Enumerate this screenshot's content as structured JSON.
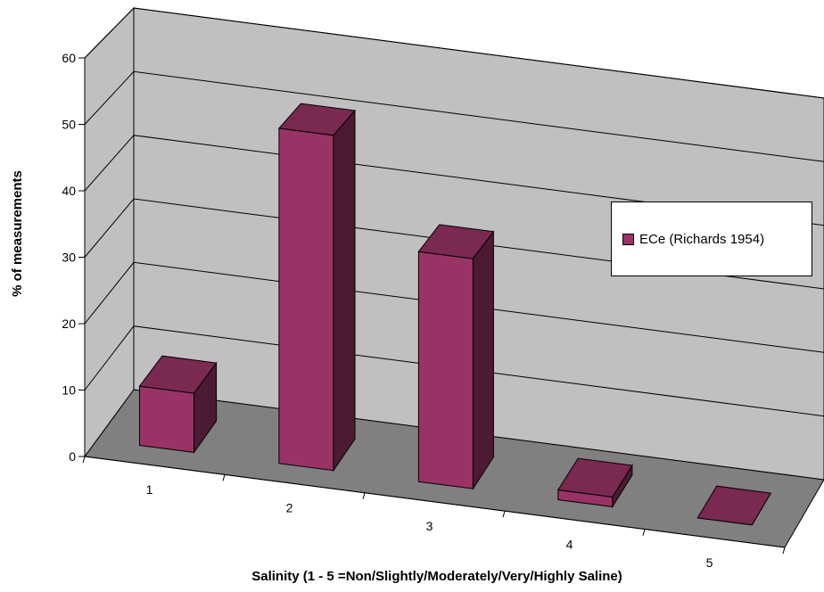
{
  "chart_data": {
    "type": "bar",
    "title": "",
    "xlabel": "Salinity (1 - 5 =Non/Slightly/Moderately/Very/Highly Saline)",
    "ylabel": "% of measurements",
    "categories": [
      "1",
      "2",
      "3",
      "4",
      "5"
    ],
    "ylim": [
      0,
      60
    ],
    "yticks": [
      "0",
      "10",
      "20",
      "30",
      "40",
      "50",
      "60"
    ],
    "series": [
      {
        "name": "ECe (Richards 1954)",
        "values": [
          9,
          51,
          35,
          1.5,
          0
        ],
        "color": "#993366"
      }
    ],
    "grid": true,
    "legend_position": "right",
    "style": "3d-column"
  }
}
